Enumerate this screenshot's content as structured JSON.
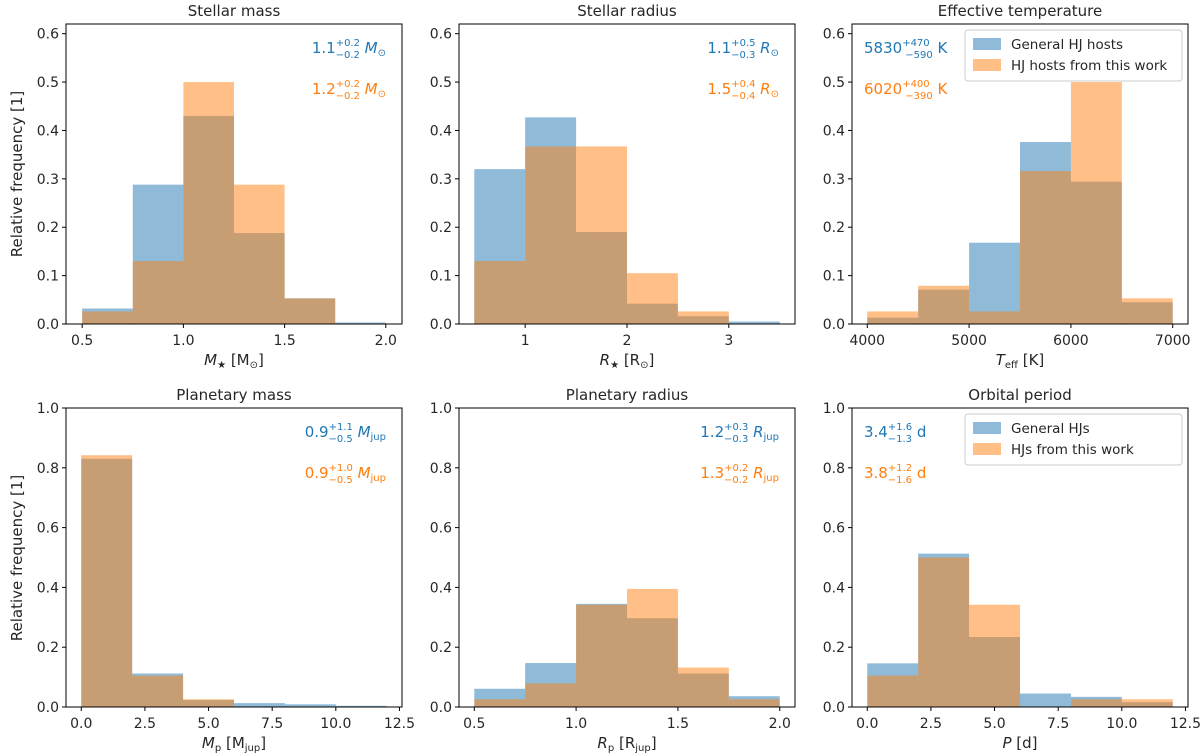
{
  "figure": {
    "ylabel": "Relative frequency [1]",
    "colors": {
      "general": "#1f77b4",
      "this_work": "#ff7f0e",
      "overlap": "#bd8b67"
    }
  },
  "chart_data": [
    {
      "type": "bar",
      "title": "Stellar mass",
      "xlabel_main": "M",
      "xlabel_sub": "★",
      "xlabel_unit_pre": " [M",
      "xlabel_unit_sub": "⊙",
      "xlabel_unit_post": "]",
      "xlim": [
        0.42,
        2.08
      ],
      "ylim": [
        0,
        0.62
      ],
      "xticks": [
        0.5,
        1.0,
        1.5,
        2.0
      ],
      "xtick_labels": [
        "0.5",
        "1.0",
        "1.5",
        "2.0"
      ],
      "yticks": [
        0,
        0.1,
        0.2,
        0.3,
        0.4,
        0.5,
        0.6
      ],
      "ytick_labels": [
        "0.0",
        "0.1",
        "0.2",
        "0.3",
        "0.4",
        "0.5",
        "0.6"
      ],
      "bin_edges": [
        0.5,
        0.75,
        1.0,
        1.25,
        1.5,
        1.75,
        2.0
      ],
      "series": [
        {
          "name": "",
          "values": [
            0.032,
            0.288,
            0.43,
            0.188,
            0.053,
            0.003
          ]
        },
        {
          "name": "",
          "values": [
            0.026,
            0.13,
            0.5,
            0.288,
            0.053,
            0.0
          ]
        }
      ],
      "annotations": [
        {
          "base": "1.1",
          "sup": "+0.2",
          "sub": "−0.2",
          "unit": "M",
          "unit_sub": "⊙"
        },
        {
          "base": "1.2",
          "sup": "+0.2",
          "sub": "−0.2",
          "unit": "M",
          "unit_sub": "⊙"
        }
      ],
      "annotation_align": "right",
      "ylabel_shown": true
    },
    {
      "type": "bar",
      "title": "Stellar radius",
      "xlabel_main": "R",
      "xlabel_sub": "★",
      "xlabel_unit_pre": " [R",
      "xlabel_unit_sub": "⊙",
      "xlabel_unit_post": "]",
      "xlim": [
        0.35,
        3.65
      ],
      "ylim": [
        0,
        0.62
      ],
      "xticks": [
        1,
        2,
        3
      ],
      "xtick_labels": [
        "1",
        "2",
        "3"
      ],
      "yticks": [
        0,
        0.1,
        0.2,
        0.3,
        0.4,
        0.5,
        0.6
      ],
      "ytick_labels": [
        "0.0",
        "0.1",
        "0.2",
        "0.3",
        "0.4",
        "0.5",
        "0.6"
      ],
      "bin_edges": [
        0.5,
        1.0,
        1.5,
        2.0,
        2.5,
        3.0,
        3.5
      ],
      "series": [
        {
          "name": "",
          "values": [
            0.32,
            0.427,
            0.19,
            0.042,
            0.016,
            0.005
          ]
        },
        {
          "name": "",
          "values": [
            0.13,
            0.367,
            0.367,
            0.105,
            0.026,
            0.0
          ]
        }
      ],
      "annotations": [
        {
          "base": "1.1",
          "sup": "+0.5",
          "sub": "−0.3",
          "unit": "R",
          "unit_sub": "⊙"
        },
        {
          "base": "1.5",
          "sup": "+0.4",
          "sub": "−0.4",
          "unit": "R",
          "unit_sub": "⊙"
        }
      ],
      "annotation_align": "right",
      "ylabel_shown": false
    },
    {
      "type": "bar",
      "title": "Effective temperature",
      "xlabel_main": "T",
      "xlabel_sub": "eff",
      "xlabel_unit_pre": " [K]",
      "xlabel_unit_sub": "",
      "xlabel_unit_post": "",
      "xlim": [
        3850,
        7150
      ],
      "ylim": [
        0,
        0.62
      ],
      "xticks": [
        4000,
        5000,
        6000,
        7000
      ],
      "xtick_labels": [
        "4000",
        "5000",
        "6000",
        "7000"
      ],
      "yticks": [
        0,
        0.1,
        0.2,
        0.3,
        0.4,
        0.5,
        0.6
      ],
      "ytick_labels": [
        "0.0",
        "0.1",
        "0.2",
        "0.3",
        "0.4",
        "0.5",
        "0.6"
      ],
      "bin_edges": [
        4000,
        4500,
        5000,
        5500,
        6000,
        6500,
        7000
      ],
      "series": [
        {
          "name": "General HJ hosts",
          "values": [
            0.013,
            0.071,
            0.168,
            0.376,
            0.294,
            0.045
          ]
        },
        {
          "name": "HJ hosts from this work",
          "values": [
            0.026,
            0.079,
            0.026,
            0.316,
            0.5,
            0.053
          ]
        }
      ],
      "annotations": [
        {
          "base": "5830",
          "sup": "+470",
          "sub": "−590",
          "unit": "K",
          "unit_sub": ""
        },
        {
          "base": "6020",
          "sup": "+400",
          "sub": "−390",
          "unit": "K",
          "unit_sub": ""
        }
      ],
      "annotation_align": "left",
      "legend": "top-right",
      "ylabel_shown": false
    },
    {
      "type": "bar",
      "title": "Planetary mass",
      "xlabel_main": "M",
      "xlabel_sub": "p",
      "xlabel_unit_pre": " [M",
      "xlabel_unit_sub": "jup",
      "xlabel_unit_post": "]",
      "xlim": [
        -0.6,
        12.6
      ],
      "ylim": [
        0,
        1.0
      ],
      "xticks": [
        0,
        2.5,
        5,
        7.5,
        10,
        12.5
      ],
      "xtick_labels": [
        "0.0",
        "2.5",
        "5.0",
        "7.5",
        "10.0",
        "12.5"
      ],
      "yticks": [
        0,
        0.2,
        0.4,
        0.6,
        0.8,
        1.0
      ],
      "ytick_labels": [
        "0.0",
        "0.2",
        "0.4",
        "0.6",
        "0.8",
        "1.0"
      ],
      "bin_edges": [
        0,
        2,
        4,
        6,
        8,
        10,
        12
      ],
      "series": [
        {
          "name": "",
          "values": [
            0.83,
            0.112,
            0.023,
            0.013,
            0.009,
            0.004
          ]
        },
        {
          "name": "",
          "values": [
            0.842,
            0.105,
            0.026,
            0.0,
            0.0,
            0.0
          ]
        }
      ],
      "annotations": [
        {
          "base": "0.9",
          "sup": "+1.1",
          "sub": "−0.5",
          "unit": "M",
          "unit_sub": "jup"
        },
        {
          "base": "0.9",
          "sup": "+1.0",
          "sub": "−0.5",
          "unit": "M",
          "unit_sub": "jup"
        }
      ],
      "annotation_align": "right",
      "ylabel_shown": true
    },
    {
      "type": "bar",
      "title": "Planetary radius",
      "xlabel_main": "R",
      "xlabel_sub": "p",
      "xlabel_unit_pre": " [R",
      "xlabel_unit_sub": "jup",
      "xlabel_unit_post": "]",
      "xlim": [
        0.425,
        2.075
      ],
      "ylim": [
        0,
        1.0
      ],
      "xticks": [
        0.5,
        1.0,
        1.5,
        2.0
      ],
      "xtick_labels": [
        "0.5",
        "1.0",
        "1.5",
        "2.0"
      ],
      "yticks": [
        0,
        0.2,
        0.4,
        0.6,
        0.8,
        1.0
      ],
      "ytick_labels": [
        "0.0",
        "0.2",
        "0.4",
        "0.6",
        "0.8",
        "1.0"
      ],
      "bin_edges": [
        0.5,
        0.75,
        1.0,
        1.25,
        1.5,
        1.75,
        2.0
      ],
      "series": [
        {
          "name": "",
          "values": [
            0.061,
            0.147,
            0.345,
            0.297,
            0.112,
            0.036
          ]
        },
        {
          "name": "",
          "values": [
            0.026,
            0.079,
            0.342,
            0.395,
            0.132,
            0.026
          ]
        }
      ],
      "annotations": [
        {
          "base": "1.2",
          "sup": "+0.3",
          "sub": "−0.3",
          "unit": "R",
          "unit_sub": "jup"
        },
        {
          "base": "1.3",
          "sup": "+0.2",
          "sub": "−0.2",
          "unit": "R",
          "unit_sub": "jup"
        }
      ],
      "annotation_align": "right",
      "ylabel_shown": false
    },
    {
      "type": "bar",
      "title": "Orbital period",
      "xlabel_main": "P",
      "xlabel_sub": "",
      "xlabel_unit_pre": " [d]",
      "xlabel_unit_sub": "",
      "xlabel_unit_post": "",
      "xlim": [
        -0.6,
        12.6
      ],
      "ylim": [
        0,
        1.0
      ],
      "xticks": [
        0,
        2.5,
        5,
        7.5,
        10,
        12.5
      ],
      "xtick_labels": [
        "0.0",
        "2.5",
        "5.0",
        "7.5",
        "10.0",
        "12.5"
      ],
      "yticks": [
        0,
        0.2,
        0.4,
        0.6,
        0.8,
        1.0
      ],
      "ytick_labels": [
        "0.0",
        "0.2",
        "0.4",
        "0.6",
        "0.8",
        "1.0"
      ],
      "bin_edges": [
        0,
        2,
        4,
        6,
        8,
        10,
        12
      ],
      "series": [
        {
          "name": "General HJs",
          "values": [
            0.146,
            0.513,
            0.234,
            0.045,
            0.034,
            0.016
          ]
        },
        {
          "name": "HJs from this work",
          "values": [
            0.105,
            0.5,
            0.342,
            0.0,
            0.026,
            0.026
          ]
        }
      ],
      "annotations": [
        {
          "base": "3.4",
          "sup": "+1.6",
          "sub": "−1.3",
          "unit": "d",
          "unit_sub": ""
        },
        {
          "base": "3.8",
          "sup": "+1.2",
          "sub": "−1.6",
          "unit": "d",
          "unit_sub": ""
        }
      ],
      "annotation_align": "left",
      "legend": "top-right",
      "ylabel_shown": false
    }
  ]
}
